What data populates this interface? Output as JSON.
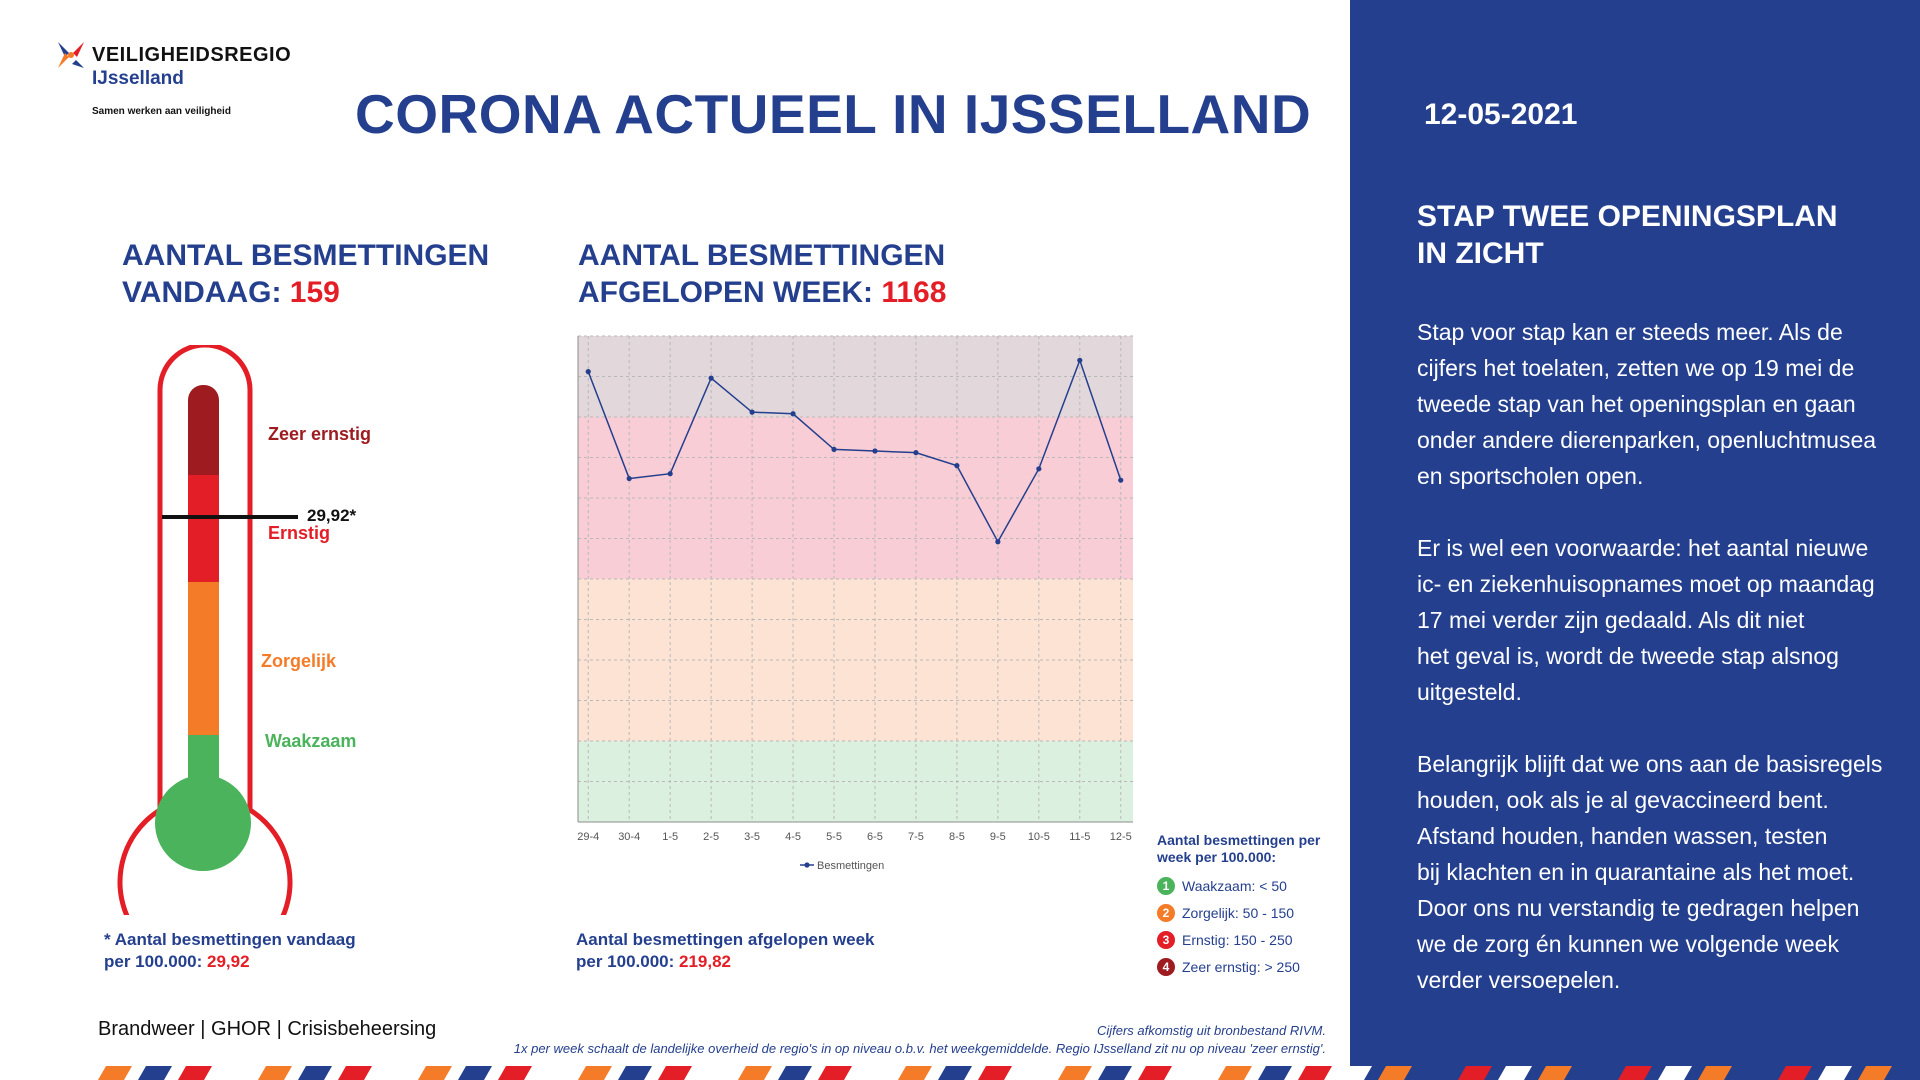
{
  "logo": {
    "title": "VEILIGHEIDSREGIO",
    "subtitle": "IJsselland",
    "tagline": "Samen werken aan veiligheid"
  },
  "header": {
    "title": "CORONA ACTUEEL IN IJSSELLAND"
  },
  "today": {
    "line1": "AANTAL BESMETTINGEN",
    "line2_prefix": "VANDAAG: ",
    "value": "159"
  },
  "week": {
    "line1": "AANTAL BESMETTINGEN",
    "line2_prefix": "AFGELOPEN WEEK: ",
    "value": "1168"
  },
  "thermometer": {
    "marker_value": 29.92,
    "marker_label": "29,92*",
    "zones": [
      {
        "label": "Zeer ernstig",
        "color": "#9e1b20"
      },
      {
        "label": "Ernstig",
        "color": "#e41e26"
      },
      {
        "label": "Zorgelijk",
        "color": "#f47b28"
      },
      {
        "label": "Waakzaam",
        "color": "#4bb35b"
      }
    ]
  },
  "chart_data": {
    "type": "line",
    "categories": [
      "29-4",
      "30-4",
      "1-5",
      "2-5",
      "3-5",
      "4-5",
      "5-5",
      "6-5",
      "7-5",
      "8-5",
      "9-5",
      "10-5",
      "11-5",
      "12-5"
    ],
    "series": [
      {
        "name": "Besmettingen",
        "values": [
          278,
          212,
          215,
          274,
          253,
          252,
          230,
          229,
          228,
          220,
          173,
          218,
          285,
          211
        ]
      }
    ],
    "ylim": [
      0,
      300
    ],
    "bands": [
      {
        "from": 0,
        "to": 50,
        "color": "#dbf0de"
      },
      {
        "from": 50,
        "to": 150,
        "color": "#fde3d3"
      },
      {
        "from": 150,
        "to": 250,
        "color": "#f8cdd5"
      },
      {
        "from": 250,
        "to": 300,
        "color": "#e2d7db"
      }
    ],
    "legend_label": "Besmettingen",
    "grid": true
  },
  "legend": {
    "title_line1": "Aantal besmettingen per",
    "title_line2": "week per 100.000:",
    "items": [
      {
        "num": "1",
        "label": "Waakzaam: < 50",
        "color": "#4bb35b"
      },
      {
        "num": "2",
        "label": "Zorgelijk: 50 - 150",
        "color": "#f47b28"
      },
      {
        "num": "3",
        "label": "Ernstig: 150 - 250",
        "color": "#e41e26"
      },
      {
        "num": "4",
        "label": "Zeer ernstig: > 250",
        "color": "#9e1b20"
      }
    ]
  },
  "notes": {
    "today_line1": "* Aantal besmettingen vandaag",
    "today_line2_prefix": "per 100.000: ",
    "today_value": "29,92",
    "week_line1": "Aantal besmettingen afgelopen week",
    "week_line2_prefix": "per 100.000: ",
    "week_value": "219,82"
  },
  "footer": {
    "left": "Brandweer | GHOR | Crisisbeheersing",
    "right_line1": "Cijfers afkomstig uit bronbestand RIVM.",
    "right_line2": "1x per week schaalt de landelijke overheid de regio's in op niveau o.b.v. het weekgemiddelde. Regio IJsselland zit nu op niveau 'zeer ernstig'."
  },
  "side": {
    "date": "12-05-2021",
    "title_line1": "STAP TWEE OPENINGSPLAN",
    "title_line2": "IN ZICHT",
    "para1": [
      "Stap voor stap kan er steeds meer. Als de",
      "cijfers het toelaten, zetten we op 19 mei de",
      "tweede stap van het openingsplan en gaan",
      "onder andere dierenparken, openluchtmusea",
      "en sportscholen open."
    ],
    "para2": [
      "Er is wel een voorwaarde: het aantal nieuwe",
      "ic- en ziekenhuisopnames moet op maandag",
      "17 mei verder zijn gedaald. Als dit niet",
      "het geval is, wordt de tweede stap alsnog",
      "uitgesteld."
    ],
    "para3": [
      "Belangrijk blijft dat we ons aan de basisregels",
      "houden, ook als je al gevaccineerd bent.",
      "Afstand houden, handen wassen, testen",
      "bij klachten en in quarantaine als het moet.",
      "Door ons nu verstandig te gedragen helpen",
      "we de zorg én kunnen we volgende week",
      "verder versoepelen."
    ]
  },
  "colors": {
    "brand_blue": "#243f8e",
    "red": "#e41e26",
    "orange": "#f47b28",
    "green": "#4bb35b",
    "dark_red": "#9e1b20"
  }
}
